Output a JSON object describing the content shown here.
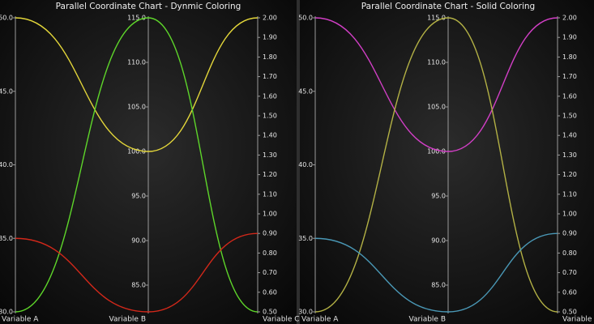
{
  "chart_data": [
    {
      "type": "parallel",
      "title": "Parallel Coordinate Chart - Dynmic Coloring",
      "axes": [
        {
          "label": "Variable A",
          "lim": [
            30,
            50
          ],
          "ticks": [
            {
              "value": 30,
              "label": "30.0"
            },
            {
              "value": 35,
              "label": "35.0"
            },
            {
              "value": 40,
              "label": "40.0"
            },
            {
              "value": 45,
              "label": "45.0"
            },
            {
              "value": 50,
              "label": "50.0"
            }
          ]
        },
        {
          "label": "Variable B",
          "lim": [
            82,
            115
          ],
          "ticks": [
            {
              "value": 85,
              "label": "85.0"
            },
            {
              "value": 90,
              "label": "90.0"
            },
            {
              "value": 95,
              "label": "95.0"
            },
            {
              "value": 100,
              "label": "100.0"
            },
            {
              "value": 105,
              "label": "105.0"
            },
            {
              "value": 110,
              "label": "110.0"
            },
            {
              "value": 115,
              "label": "115.0"
            }
          ]
        },
        {
          "label": "Variable C",
          "lim": [
            0.5,
            2.0
          ],
          "ticks": [
            {
              "value": 0.5,
              "label": "0.50"
            },
            {
              "value": 0.6,
              "label": "0.60"
            },
            {
              "value": 0.7,
              "label": "0.70"
            },
            {
              "value": 0.8,
              "label": "0.80"
            },
            {
              "value": 0.9,
              "label": "0.90"
            },
            {
              "value": 1.0,
              "label": "1.00"
            },
            {
              "value": 1.1,
              "label": "1.10"
            },
            {
              "value": 1.2,
              "label": "1.20"
            },
            {
              "value": 1.3,
              "label": "1.30"
            },
            {
              "value": 1.4,
              "label": "1.40"
            },
            {
              "value": 1.5,
              "label": "1.50"
            },
            {
              "value": 1.6,
              "label": "1.60"
            },
            {
              "value": 1.7,
              "label": "1.70"
            },
            {
              "value": 1.8,
              "label": "1.80"
            },
            {
              "value": 1.9,
              "label": "1.90"
            },
            {
              "value": 2.0,
              "label": "2.00"
            }
          ]
        }
      ],
      "series": [
        {
          "color": "#e3d63a",
          "values": [
            50,
            100,
            2.0
          ]
        },
        {
          "color": "#5ed62a",
          "values": [
            30,
            115,
            0.5
          ]
        },
        {
          "color": "#d2281a",
          "values": [
            35,
            82,
            0.9
          ]
        }
      ]
    },
    {
      "type": "parallel",
      "title": "Parallel Coordinate Chart - Solid Coloring",
      "axes": [
        {
          "label": "Variable A",
          "lim": [
            30,
            50
          ],
          "ticks": [
            {
              "value": 30,
              "label": "30.0"
            },
            {
              "value": 35,
              "label": "35.0"
            },
            {
              "value": 40,
              "label": "40.0"
            },
            {
              "value": 45,
              "label": "45.0"
            },
            {
              "value": 50,
              "label": "50.0"
            }
          ]
        },
        {
          "label": "Variable B",
          "lim": [
            82,
            115
          ],
          "ticks": [
            {
              "value": 85,
              "label": "85.0"
            },
            {
              "value": 90,
              "label": "90.0"
            },
            {
              "value": 95,
              "label": "95.0"
            },
            {
              "value": 100,
              "label": "100.0"
            },
            {
              "value": 105,
              "label": "105.0"
            },
            {
              "value": 110,
              "label": "110.0"
            },
            {
              "value": 115,
              "label": "115.0"
            }
          ]
        },
        {
          "label": "Variable C",
          "lim": [
            0.5,
            2.0
          ],
          "ticks": [
            {
              "value": 0.5,
              "label": "0.50"
            },
            {
              "value": 0.6,
              "label": "0.60"
            },
            {
              "value": 0.7,
              "label": "0.70"
            },
            {
              "value": 0.8,
              "label": "0.80"
            },
            {
              "value": 0.9,
              "label": "0.90"
            },
            {
              "value": 1.0,
              "label": "1.00"
            },
            {
              "value": 1.1,
              "label": "1.10"
            },
            {
              "value": 1.2,
              "label": "1.20"
            },
            {
              "value": 1.3,
              "label": "1.30"
            },
            {
              "value": 1.4,
              "label": "1.40"
            },
            {
              "value": 1.5,
              "label": "1.50"
            },
            {
              "value": 1.6,
              "label": "1.60"
            },
            {
              "value": 1.7,
              "label": "1.70"
            },
            {
              "value": 1.8,
              "label": "1.80"
            },
            {
              "value": 1.9,
              "label": "1.90"
            },
            {
              "value": 2.0,
              "label": "2.00"
            }
          ]
        }
      ],
      "series": [
        {
          "color": "#d23fc6",
          "values": [
            50,
            100,
            2.0
          ]
        },
        {
          "color": "#b3b145",
          "values": [
            30,
            115,
            0.5
          ]
        },
        {
          "color": "#4a98b6",
          "values": [
            35,
            82,
            0.9
          ]
        }
      ]
    }
  ]
}
